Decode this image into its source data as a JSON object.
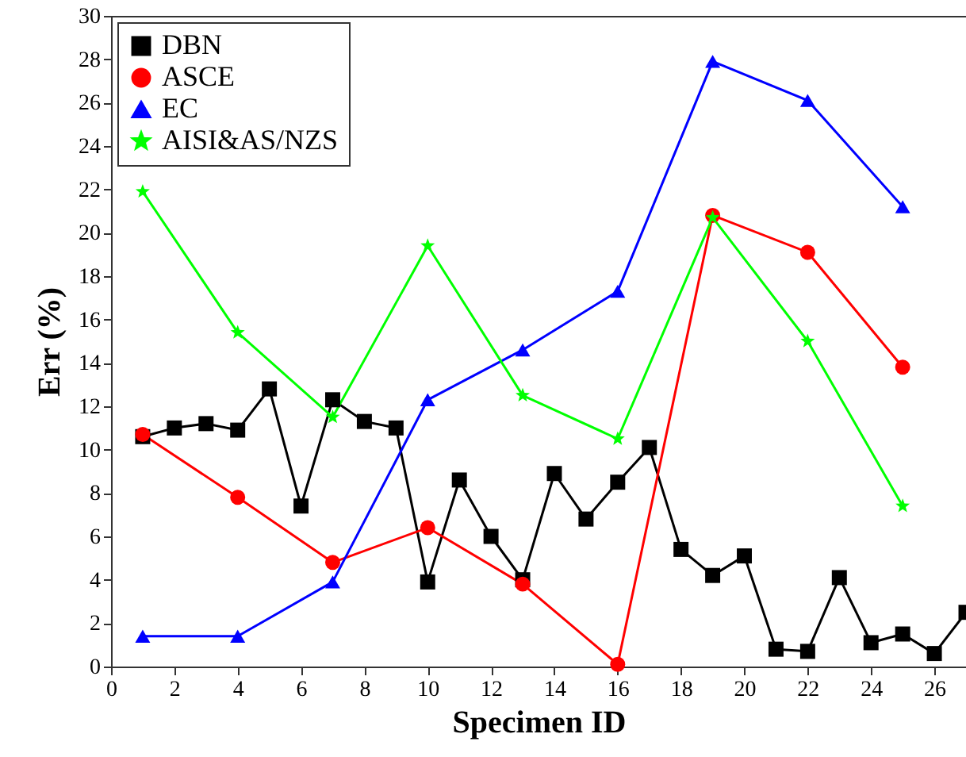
{
  "chart_data": {
    "type": "line",
    "xlabel": "Specimen ID",
    "ylabel": "Err (%)",
    "xlim": [
      0,
      27
    ],
    "xticks": [
      0,
      2,
      4,
      6,
      8,
      10,
      12,
      14,
      16,
      18,
      20,
      22,
      24,
      26
    ],
    "ylim": [
      0,
      30
    ],
    "yticks": [
      0,
      2,
      4,
      6,
      8,
      10,
      12,
      14,
      16,
      18,
      20,
      22,
      24,
      26,
      28,
      30
    ],
    "grid": false,
    "legend": "top left",
    "series": [
      {
        "name": "DBN",
        "color": "#000000",
        "marker": "square",
        "x": [
          1,
          2,
          3,
          4,
          5,
          6,
          7,
          8,
          9,
          10,
          11,
          12,
          13,
          14,
          15,
          16,
          17,
          18,
          19,
          20,
          21,
          22,
          23,
          24,
          25,
          26,
          27
        ],
        "values": [
          10.6,
          11.0,
          11.2,
          10.9,
          12.8,
          7.4,
          12.3,
          11.3,
          11.0,
          3.9,
          8.6,
          6.0,
          4.0,
          8.9,
          6.8,
          8.5,
          10.1,
          5.4,
          4.2,
          5.1,
          0.8,
          0.7,
          4.1,
          1.1,
          1.5,
          0.6,
          2.5
        ]
      },
      {
        "name": "ASCE",
        "color": "#ff0000",
        "marker": "circle",
        "x": [
          1,
          4,
          7,
          10,
          13,
          16,
          19,
          22,
          25
        ],
        "values": [
          10.7,
          7.8,
          4.8,
          6.4,
          3.8,
          0.1,
          20.8,
          19.1,
          13.8
        ]
      },
      {
        "name": "EC",
        "color": "#0000ff",
        "marker": "triangle",
        "x": [
          1,
          4,
          7,
          10,
          13,
          16,
          19,
          22,
          25
        ],
        "values": [
          1.4,
          1.4,
          3.9,
          12.3,
          14.6,
          17.3,
          27.9,
          26.1,
          21.2
        ]
      },
      {
        "name": "AISI&AS/NZS",
        "color": "#00ff00",
        "marker": "star",
        "x": [
          1,
          4,
          7,
          10,
          13,
          16,
          19,
          22,
          25
        ],
        "values": [
          21.9,
          15.4,
          11.5,
          19.4,
          12.5,
          10.5,
          20.7,
          15.0,
          7.4
        ]
      }
    ]
  }
}
